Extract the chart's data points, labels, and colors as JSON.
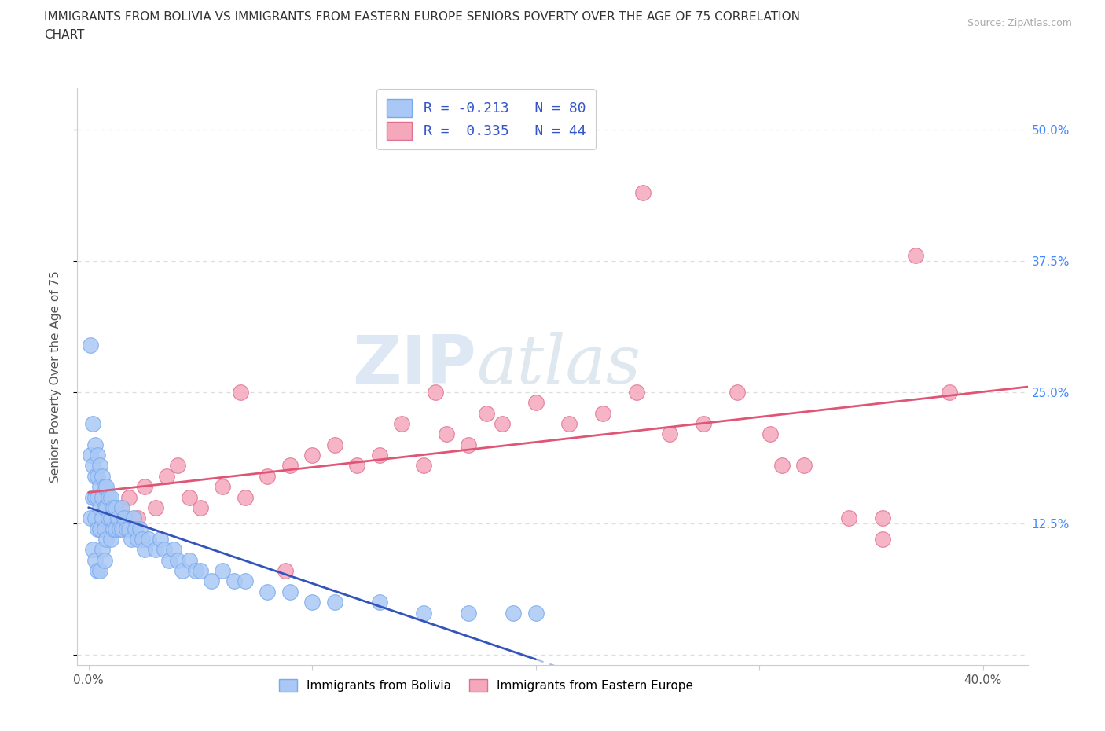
{
  "title_line1": "IMMIGRANTS FROM BOLIVIA VS IMMIGRANTS FROM EASTERN EUROPE SENIORS POVERTY OVER THE AGE OF 75 CORRELATION",
  "title_line2": "CHART",
  "source": "Source: ZipAtlas.com",
  "ylabel": "Seniors Poverty Over the Age of 75",
  "xlim": [
    -0.005,
    0.42
  ],
  "ylim": [
    -0.01,
    0.54
  ],
  "xticks": [
    0.0,
    0.1,
    0.2,
    0.3,
    0.4
  ],
  "xtick_labels": [
    "0.0%",
    "",
    "",
    "",
    "40.0%"
  ],
  "yticks": [
    0.0,
    0.125,
    0.25,
    0.375,
    0.5
  ],
  "ytick_labels_right": [
    "",
    "12.5%",
    "25.0%",
    "37.5%",
    "50.0%"
  ],
  "bolivia_color": "#aac8f5",
  "bolivia_edge": "#7aaaee",
  "eastern_color": "#f5a8bc",
  "eastern_edge": "#e07090",
  "bolivia_R": -0.213,
  "bolivia_N": 80,
  "eastern_R": 0.335,
  "eastern_N": 44,
  "watermark_zip": "ZIP",
  "watermark_atlas": "atlas",
  "background_color": "#ffffff",
  "trend_bolivia_color": "#3355bb",
  "trend_bolivia_dash_color": "#aabbdd",
  "trend_eastern_color": "#e05575",
  "grid_color": "#dddddd",
  "axis_color": "#cccccc",
  "tick_label_color_x": "#555555",
  "tick_label_color_y": "#4488ff",
  "title_color": "#333333",
  "source_color": "#aaaaaa",
  "legend_text_color": "#3355cc"
}
